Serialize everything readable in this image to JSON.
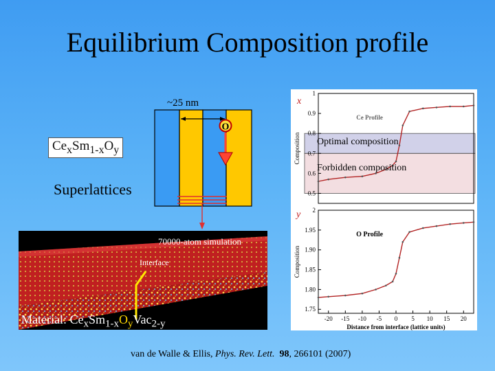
{
  "title": "Equilibrium Composition profile",
  "scale_label": "~25 nm",
  "o_marker": "O",
  "formula": {
    "ce": "Ce",
    "x1": "x",
    "sm": "Sm",
    "sub1": "1-x",
    "o": "O",
    "y1": "y"
  },
  "superlattices": "Superlattices",
  "simulation_label": "70000-atom simulation",
  "interface_label": "Interface",
  "material": {
    "prefix": "Material: Ce",
    "x": "x",
    "sm": "Sm",
    "sub": "1-x",
    "o": "O",
    "y": "y",
    "vac": "Vac",
    "vsub": "2-y"
  },
  "citation": {
    "authors": "van de Walle & Ellis, ",
    "journal": "Phys. Rev. Lett.",
    "volume": "98",
    "rest": ", 266101 (2007)"
  },
  "overlay": {
    "optimal": "Optimal composition",
    "forbidden": "Forbidden composition",
    "x_label": "x",
    "y_label": "y"
  },
  "chart_data": [
    {
      "type": "line",
      "title": "Ce Profile",
      "ylabel": "Composition",
      "xlim": [
        -23,
        23
      ],
      "ylim": [
        0.45,
        1.0
      ],
      "yticks": [
        "1",
        "0.9",
        "0.8",
        "0.7",
        "0.6",
        "0.5"
      ],
      "bands": [
        {
          "name": "Optimal composition",
          "range": [
            0.7,
            0.8
          ]
        },
        {
          "name": "Forbidden composition",
          "range": [
            0.5,
            0.7
          ]
        }
      ],
      "series": [
        {
          "x": [
            -23,
            -20,
            -15,
            -10,
            -6,
            -3,
            -1,
            0,
            1,
            2,
            4,
            8,
            12,
            16,
            20,
            23
          ],
          "y": [
            0.56,
            0.57,
            0.58,
            0.585,
            0.6,
            0.62,
            0.64,
            0.66,
            0.74,
            0.84,
            0.91,
            0.925,
            0.93,
            0.935,
            0.935,
            0.94
          ]
        }
      ]
    },
    {
      "type": "line",
      "title": "O Profile",
      "xlabel": "Distance from interface (lattice units)",
      "ylabel": "Composition",
      "xlim": [
        -23,
        23
      ],
      "ylim": [
        1.74,
        2.0
      ],
      "xticks": [
        "-20",
        "-15",
        "-10",
        "-5",
        "0",
        "5",
        "10",
        "15",
        "20"
      ],
      "yticks": [
        "2",
        "1.95",
        "1.90",
        "1.85",
        "1.80",
        "1.75"
      ],
      "series": [
        {
          "x": [
            -23,
            -20,
            -15,
            -10,
            -6,
            -3,
            -1,
            0,
            1,
            2,
            4,
            8,
            12,
            16,
            20,
            23
          ],
          "y": [
            1.78,
            1.782,
            1.785,
            1.79,
            1.8,
            1.81,
            1.82,
            1.84,
            1.88,
            1.92,
            1.945,
            1.955,
            1.96,
            1.965,
            1.968,
            1.97
          ]
        }
      ]
    }
  ]
}
